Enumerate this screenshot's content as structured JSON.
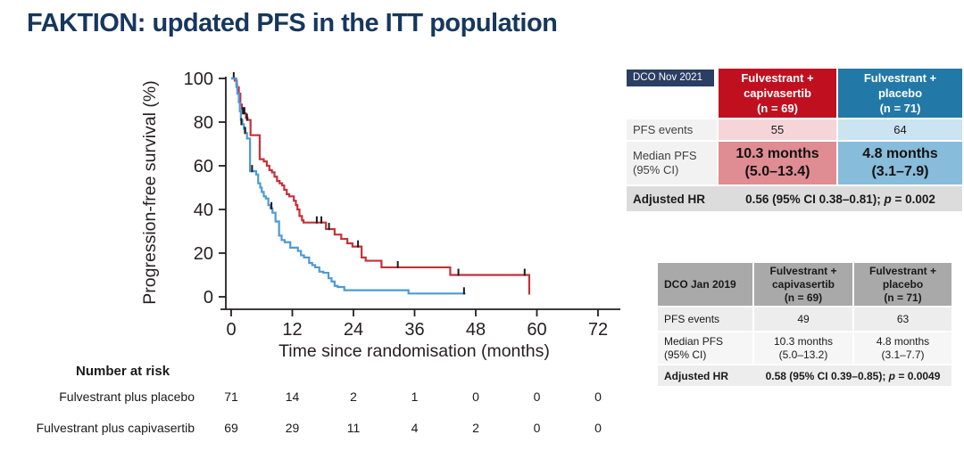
{
  "page": {
    "title": "FAKTION: updated PFS in the ITT population",
    "title_color": "#17375D",
    "background": "#FFFFFF"
  },
  "chart_data": {
    "type": "line",
    "subtype": "kaplan_meier_step",
    "title": "",
    "xlabel": "Time since randomisation (months)",
    "ylabel": "Progression-free survival (%)",
    "xlim": [
      0,
      72
    ],
    "ylim": [
      0,
      100
    ],
    "x_ticks": [
      0,
      12,
      24,
      36,
      48,
      60,
      72
    ],
    "y_ticks": [
      0,
      20,
      40,
      60,
      80,
      100
    ],
    "grid": false,
    "legend_position": "none",
    "axis_color": "#231F20",
    "censor_color": "#1A1A1A",
    "series": [
      {
        "name": "Fulvestrant + capivasertib",
        "n": 69,
        "color": "#C5313A",
        "end_month": 58.5,
        "steps": [
          [
            0,
            100
          ],
          [
            0.7,
            99
          ],
          [
            1.1,
            96
          ],
          [
            1.5,
            93
          ],
          [
            1.8,
            88
          ],
          [
            2.1,
            86
          ],
          [
            2.4,
            84
          ],
          [
            2.9,
            82
          ],
          [
            3.2,
            81
          ],
          [
            3.8,
            74
          ],
          [
            5.6,
            63
          ],
          [
            6.4,
            62
          ],
          [
            7.0,
            60
          ],
          [
            7.5,
            58
          ],
          [
            8.0,
            57
          ],
          [
            8.5,
            55
          ],
          [
            9.0,
            53
          ],
          [
            9.5,
            52
          ],
          [
            10.0,
            51
          ],
          [
            10.4,
            49
          ],
          [
            10.9,
            47
          ],
          [
            11.4,
            46
          ],
          [
            12.3,
            44
          ],
          [
            12.7,
            42
          ],
          [
            13.0,
            40
          ],
          [
            13.4,
            37
          ],
          [
            13.9,
            35
          ],
          [
            14.2,
            34
          ],
          [
            18.6,
            31
          ],
          [
            20.3,
            28.5
          ],
          [
            21.6,
            26.5
          ],
          [
            22.8,
            24.5
          ],
          [
            23.8,
            23
          ],
          [
            25.6,
            18
          ],
          [
            26.4,
            16.5
          ],
          [
            29.5,
            13.5
          ],
          [
            43.0,
            10
          ],
          [
            58.5,
            1
          ]
        ],
        "censor_marks": [
          [
            0.5,
            100
          ],
          [
            2.3,
            84
          ],
          [
            2.6,
            84
          ],
          [
            3.1,
            81
          ],
          [
            16.8,
            34
          ],
          [
            17.7,
            34
          ],
          [
            19.2,
            31
          ],
          [
            24.9,
            23
          ],
          [
            32.7,
            13.5
          ],
          [
            44.6,
            10
          ],
          [
            57.6,
            10
          ]
        ]
      },
      {
        "name": "Fulvestrant + placebo",
        "n": 71,
        "color": "#4D9AD5",
        "end_month": 46,
        "steps": [
          [
            0,
            100
          ],
          [
            1.0,
            97
          ],
          [
            1.2,
            93
          ],
          [
            1.5,
            89
          ],
          [
            1.7,
            85
          ],
          [
            1.9,
            81
          ],
          [
            2.2,
            79
          ],
          [
            2.5,
            77
          ],
          [
            2.8,
            75
          ],
          [
            3.1,
            72.5
          ],
          [
            3.7,
            57.5
          ],
          [
            4.9,
            56
          ],
          [
            5.3,
            52
          ],
          [
            5.7,
            50
          ],
          [
            6.0,
            48
          ],
          [
            6.4,
            46
          ],
          [
            6.8,
            45
          ],
          [
            7.3,
            42
          ],
          [
            7.7,
            40.5
          ],
          [
            8.1,
            38.5
          ],
          [
            8.7,
            34.5
          ],
          [
            9.4,
            28
          ],
          [
            9.9,
            26
          ],
          [
            10.5,
            25
          ],
          [
            11.6,
            22.5
          ],
          [
            13.1,
            21
          ],
          [
            13.7,
            19
          ],
          [
            14.3,
            18
          ],
          [
            15.3,
            15.5
          ],
          [
            15.9,
            14.5
          ],
          [
            16.5,
            13.5
          ],
          [
            17.3,
            11.5
          ],
          [
            18.1,
            11
          ],
          [
            19.1,
            8.5
          ],
          [
            19.7,
            7
          ],
          [
            20.3,
            5
          ],
          [
            20.9,
            4.5
          ],
          [
            22.2,
            3
          ],
          [
            34.8,
            1.5
          ]
        ],
        "censor_marks": [
          [
            2.0,
            79
          ],
          [
            2.7,
            75
          ],
          [
            4.1,
            57.5
          ],
          [
            7.9,
            40.5
          ],
          [
            45.7,
            1.5
          ]
        ]
      }
    ],
    "at_risk": {
      "heading": "Number at risk",
      "time_points": [
        0,
        12,
        24,
        36,
        48,
        60,
        72
      ],
      "rows": [
        {
          "label": "Fulvestrant plus placebo",
          "values": [
            "71",
            "14",
            "2",
            "1",
            "0",
            "0",
            "0"
          ]
        },
        {
          "label": "Fulvestrant plus capivasertib",
          "values": [
            "69",
            "29",
            "11",
            "4",
            "2",
            "0",
            "0"
          ]
        }
      ]
    }
  },
  "table_2021": {
    "dco": "DCO Nov 2021",
    "col_capivasertib": "Fulvestrant +\ncapivasertib\n(n = 69)",
    "col_placebo": "Fulvestrant +\nplacebo\n(n = 71)",
    "events_label": "PFS events",
    "events_capivasertib": "55",
    "events_placebo": "64",
    "median_label": "Median PFS\n(95% CI)",
    "median_capivasertib": "10.3 months\n(5.0–13.4)",
    "median_placebo": "4.8 months\n(3.1–7.9)",
    "hr_label": "Adjusted HR",
    "hr_prefix": "0.56 (95% CI 0.38–0.81); ",
    "hr_p": "p",
    "hr_suffix": " = 0.002",
    "colors": {
      "badge": "#2B3E63",
      "capivasertib_header": "#C01020",
      "placebo_header": "#2279A7",
      "capivasertib_light": "#F6D5D8",
      "placebo_light": "#CBE4F1",
      "capivasertib_mid": "#DF8C92",
      "placebo_mid": "#87BCDA",
      "label_bg": "#F2F2F2",
      "hr_bg": "#DCDCDC"
    }
  },
  "table_2019": {
    "dco": "DCO Jan 2019",
    "col_capivasertib": "Fulvestrant +\ncapivasertib\n(n = 69)",
    "col_placebo": "Fulvestrant +\nplacebo\n(n = 71)",
    "events_label": "PFS events",
    "events_capivasertib": "49",
    "events_placebo": "63",
    "median_label": "Median PFS\n(95% CI)",
    "median_capivasertib": "10.3 months\n(5.0–13.2)",
    "median_placebo": "4.8 months\n(3.1–7.7)",
    "hr_label": "Adjusted HR",
    "hr_prefix": "0.58 (95% CI 0.39–0.85); ",
    "hr_p": "p",
    "hr_suffix": " = 0.0049",
    "colors": {
      "header": "#A9A9A9",
      "row_light": "#EDEDED",
      "row_lighter": "#F6F6F6"
    }
  }
}
